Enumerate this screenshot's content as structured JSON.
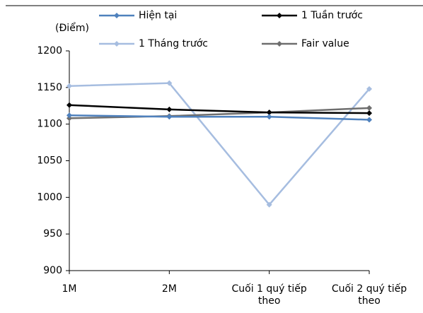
{
  "chart_data": {
    "type": "line",
    "y_label": "(Điểm)",
    "categories": [
      "1M",
      "2M",
      "Cuối 1 quý tiếp theo",
      "Cuối 2 quý tiếp theo"
    ],
    "series": [
      {
        "name": "Hiện tại",
        "color": "#4f81bd",
        "values": [
          1112,
          1110,
          1110,
          1106
        ]
      },
      {
        "name": "1 Tuần trước",
        "color": "#000000",
        "values": [
          1126,
          1120,
          1116,
          1115
        ]
      },
      {
        "name": "1 Tháng trước",
        "color": "#a6bde0",
        "values": [
          1152,
          1156,
          990,
          1148
        ]
      },
      {
        "name": "Fair value",
        "color": "#6e6e6e",
        "values": [
          1108,
          1111,
          1116,
          1122
        ]
      }
    ],
    "ylim": [
      900,
      1200
    ],
    "yticks": [
      900,
      950,
      1000,
      1050,
      1100,
      1150,
      1200
    ]
  }
}
